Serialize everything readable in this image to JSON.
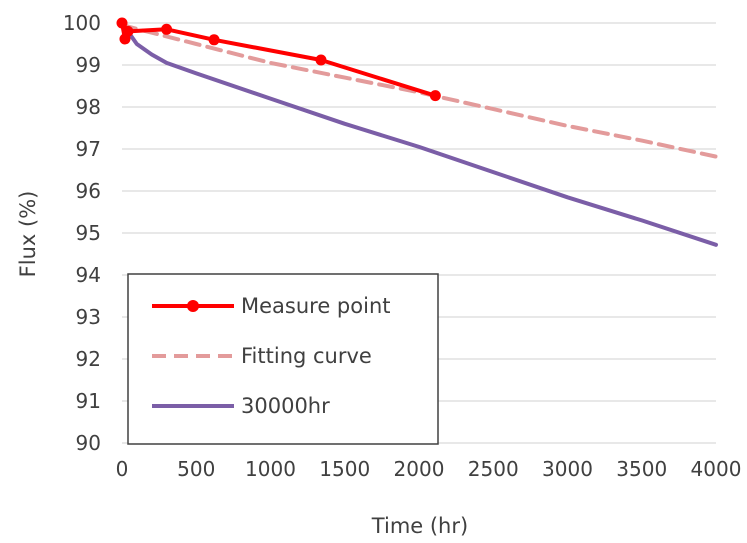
{
  "chart_data": {
    "type": "line",
    "xlabel": "Time (hr)",
    "ylabel": "Flux (%)",
    "xlim": [
      0,
      4000
    ],
    "ylim": [
      90,
      100
    ],
    "xticks": [
      0,
      500,
      1000,
      1500,
      2000,
      2500,
      3000,
      3500,
      4000
    ],
    "yticks": [
      90,
      91,
      92,
      93,
      94,
      95,
      96,
      97,
      98,
      99,
      100
    ],
    "grid": "horizontal",
    "legend_position": "bottom-left",
    "series": [
      {
        "name": "Measure point",
        "style": "solid-markers",
        "color": "#ff0000",
        "x": [
          0,
          20,
          40,
          300,
          620,
          1340,
          2110
        ],
        "y": [
          100,
          99.62,
          99.8,
          99.85,
          99.6,
          99.12,
          98.27
        ]
      },
      {
        "name": "Fitting curve",
        "style": "dashed",
        "color": "#e39b9b",
        "x": [
          0,
          500,
          1000,
          1500,
          2000,
          2500,
          3000,
          3500,
          4000
        ],
        "y": [
          99.95,
          99.5,
          99.05,
          98.7,
          98.35,
          97.95,
          97.55,
          97.2,
          96.82
        ]
      },
      {
        "name": "30000hr",
        "style": "solid",
        "color": "#7b5ea7",
        "x": [
          0,
          100,
          200,
          300,
          500,
          1000,
          1500,
          2000,
          2500,
          3000,
          3500,
          4000
        ],
        "y": [
          100,
          99.5,
          99.25,
          99.05,
          98.8,
          98.2,
          97.6,
          97.05,
          96.45,
          95.85,
          95.3,
          94.72
        ]
      }
    ]
  }
}
